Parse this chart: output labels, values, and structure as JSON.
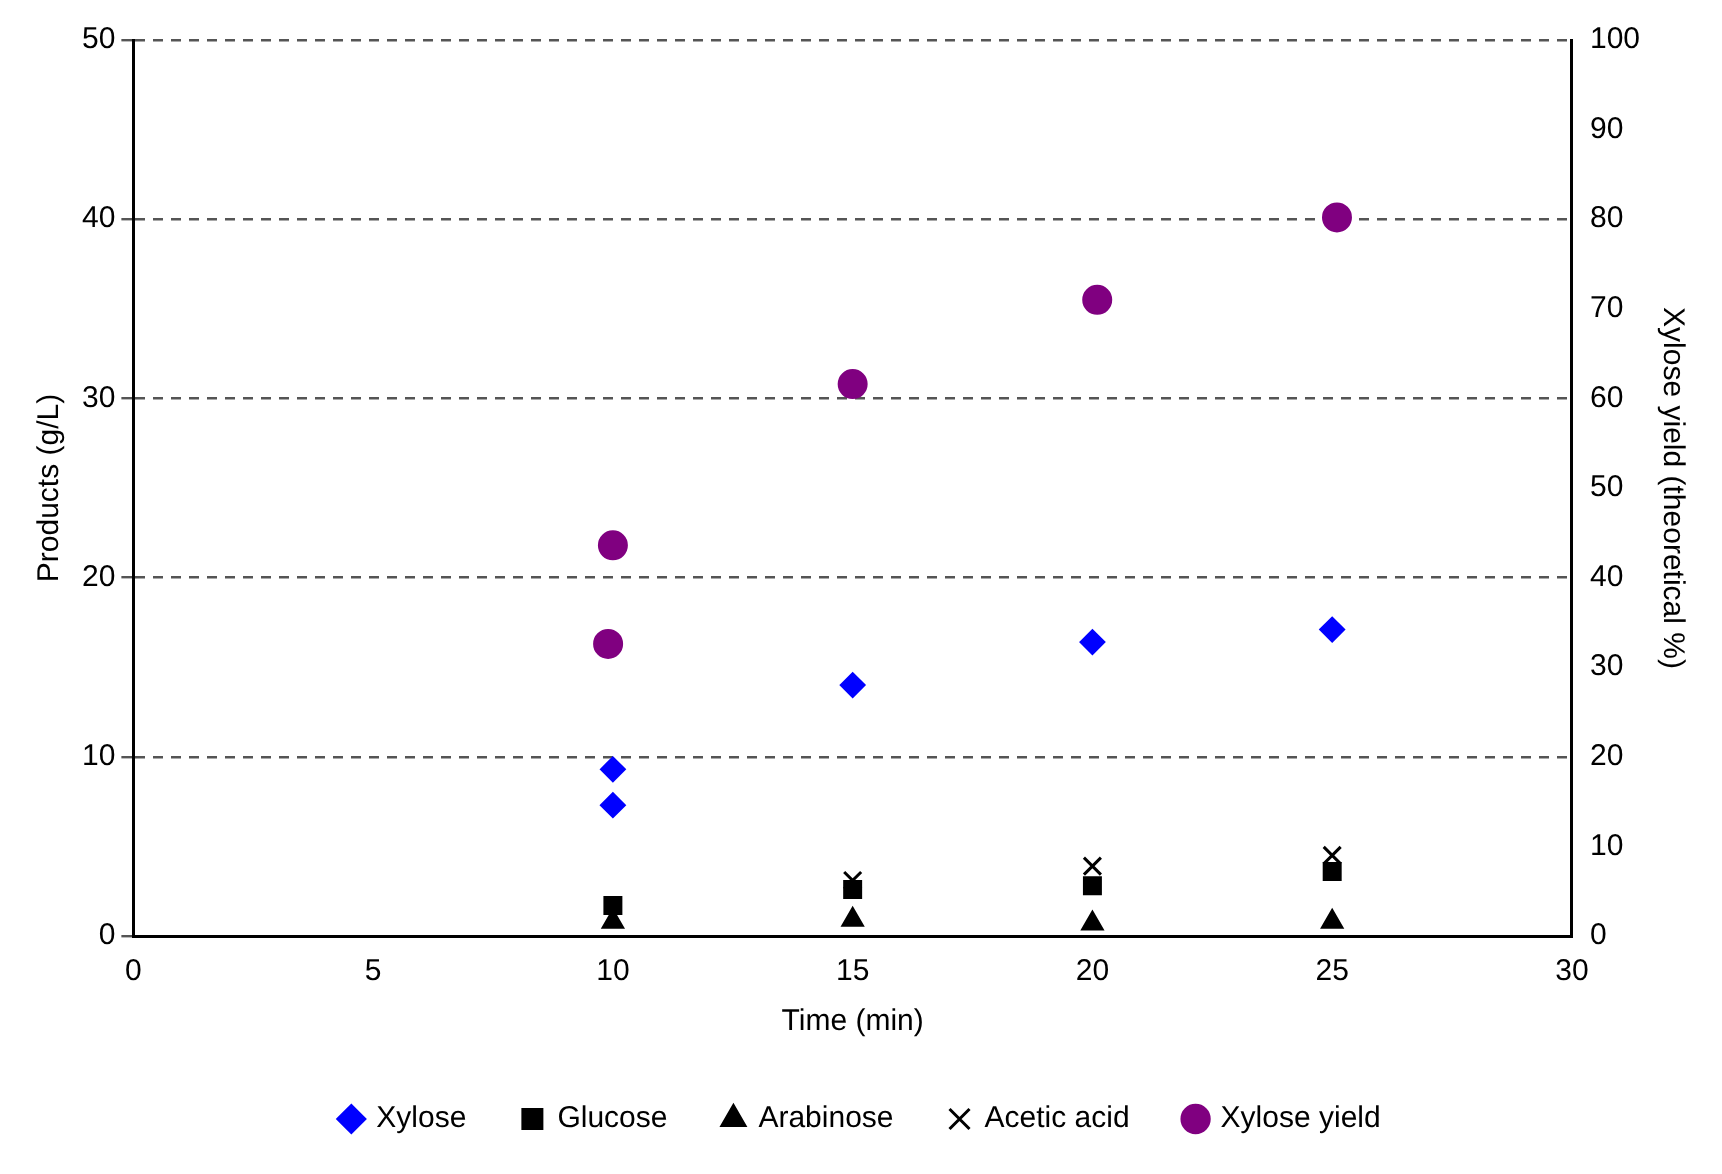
{
  "chart_data": {
    "type": "scatter",
    "xlabel": "Time (min)",
    "ylabel": "Products (g/L)",
    "y2label": "Xylose yield (theoretical %)",
    "xlim": [
      0,
      30
    ],
    "xticks": [
      0,
      5,
      10,
      15,
      20,
      25,
      30
    ],
    "ylim": [
      0,
      50
    ],
    "yticks": [
      0,
      10,
      20,
      30,
      40,
      50
    ],
    "y2lim": [
      0,
      100
    ],
    "y2ticks": [
      0,
      10,
      20,
      30,
      40,
      50,
      60,
      70,
      80,
      90,
      100
    ],
    "grid": "y",
    "legend": "bottom",
    "series": [
      {
        "name": "Xylose",
        "color": "#0000ff",
        "marker": "diamond",
        "x": [
          10,
          10,
          15,
          20,
          25
        ],
        "values": [
          9.3,
          7.3,
          14.0,
          16.4,
          17.1
        ]
      },
      {
        "name": "Glucose",
        "color": "#000000",
        "marker": "square",
        "x": [
          10,
          15,
          20,
          25
        ],
        "values": [
          1.7,
          2.6,
          2.8,
          3.6
        ]
      },
      {
        "name": "Arabinose",
        "color": "#000000",
        "marker": "triangle",
        "x": [
          10,
          15,
          20,
          25
        ],
        "values": [
          0.8,
          0.9,
          0.7,
          0.8
        ]
      },
      {
        "name": "Acetic acid",
        "color": "#000000",
        "marker": "cross",
        "x": [
          15,
          20,
          25
        ],
        "values": [
          3.1,
          3.9,
          4.5
        ]
      },
      {
        "name": "Xylose yield",
        "color": "#800080",
        "marker": "circle",
        "axis": "y2",
        "x": [
          9.9,
          10,
          15,
          20.1,
          25.1
        ],
        "values": [
          32.6,
          43.6,
          61.6,
          71,
          80.2
        ]
      }
    ]
  }
}
